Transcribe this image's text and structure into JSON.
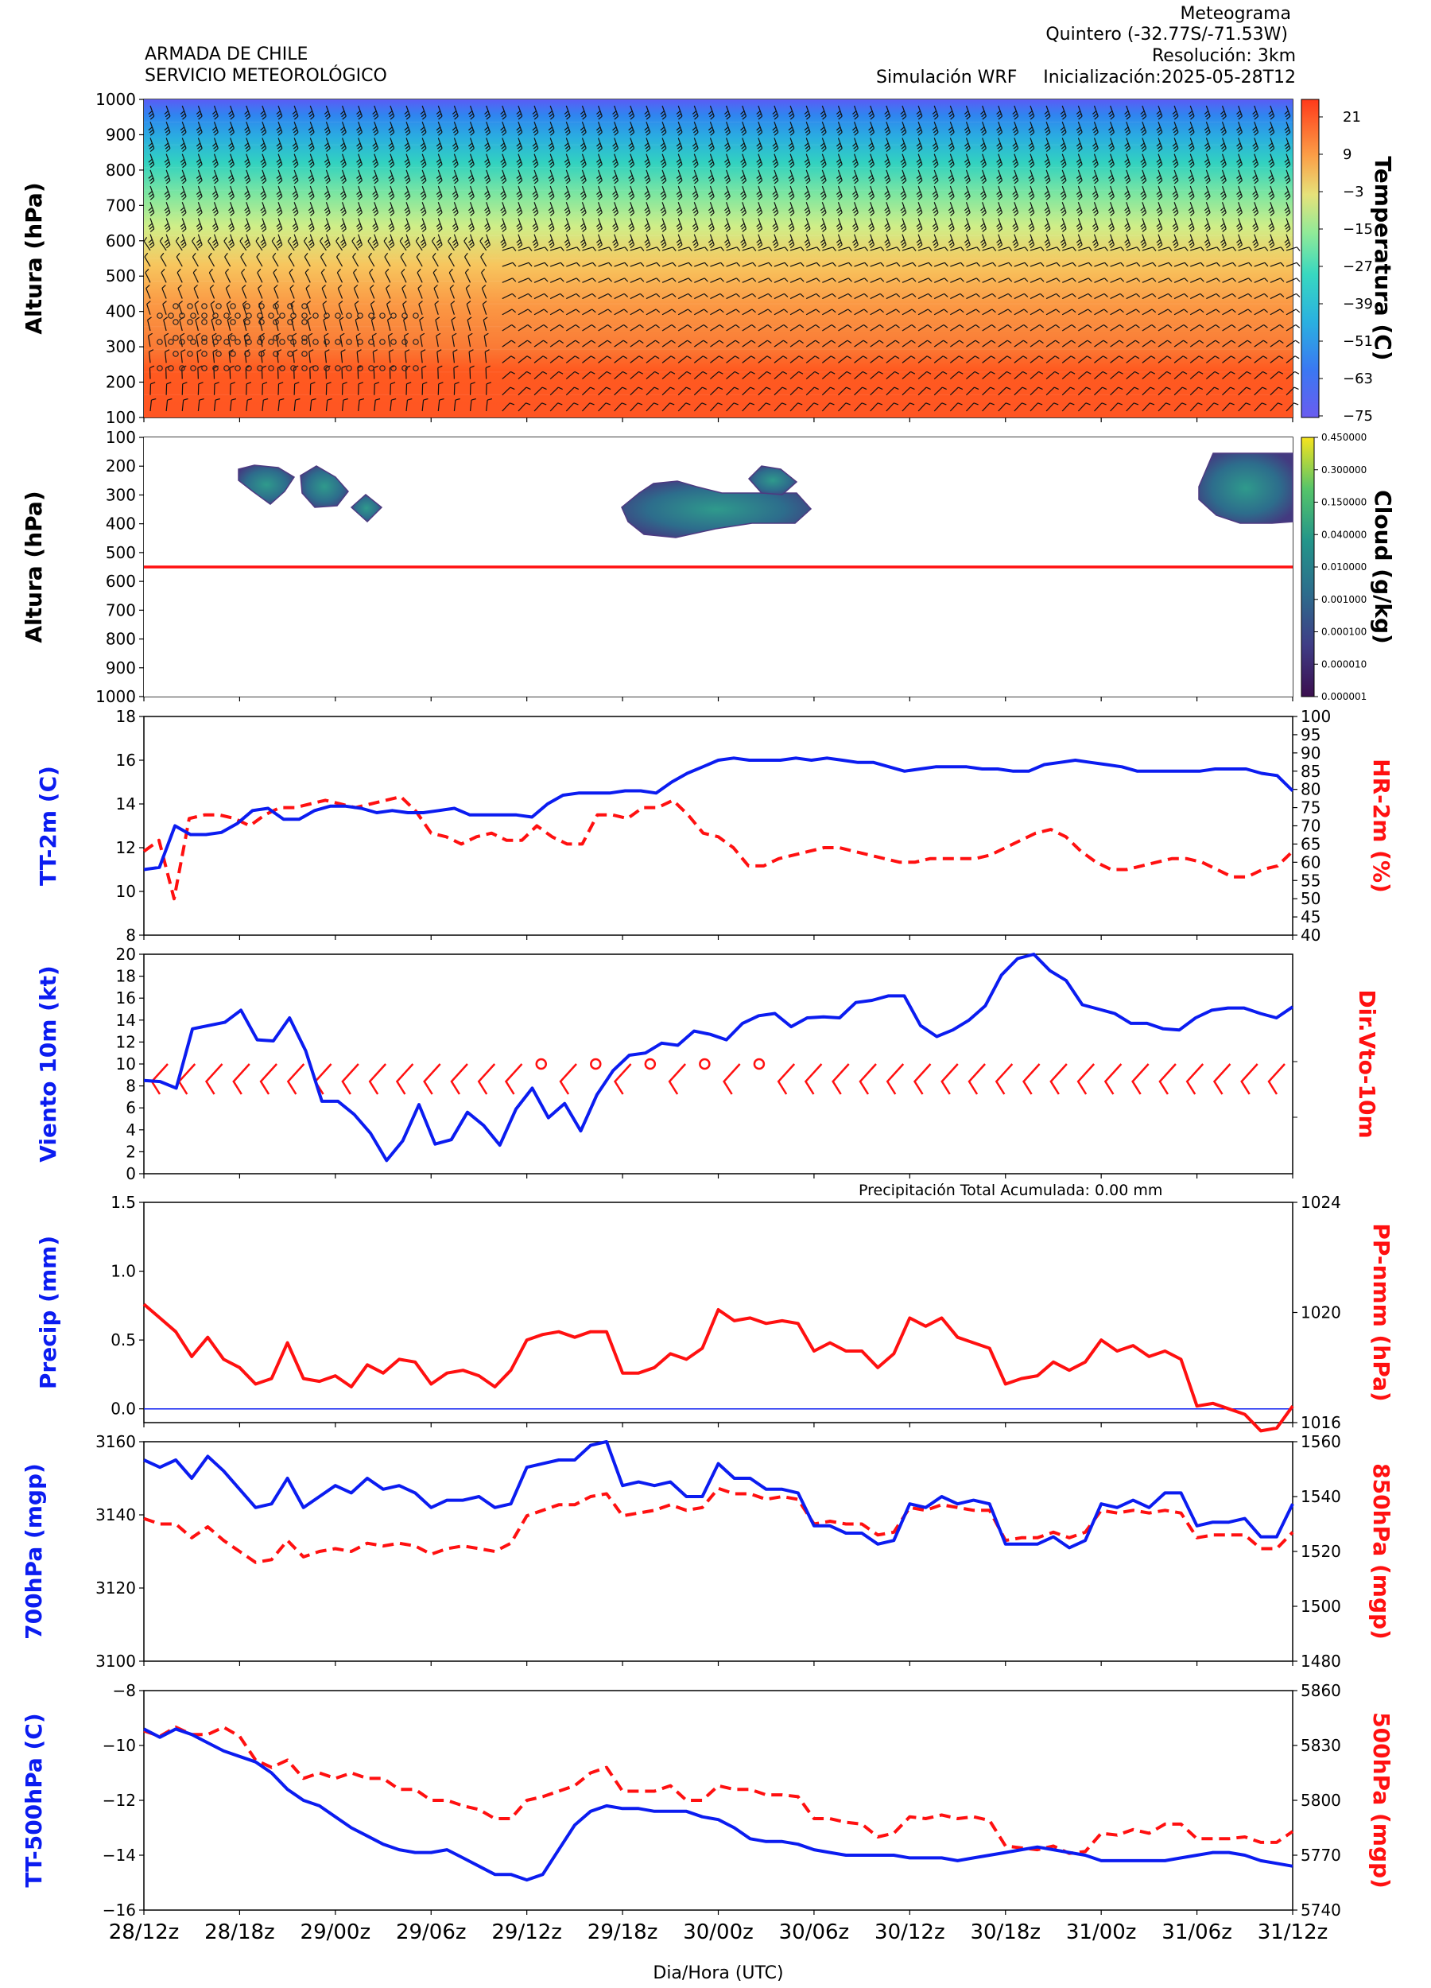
{
  "header": {
    "org_line1": "ARMADA DE CHILE",
    "org_line2": "SERVICIO METEOROLÓGICO",
    "product": "Meteograma",
    "location": "Quintero  (-32.77S/-71.53W)",
    "resolution": "Resolución: 3km",
    "simulation": "Simulación WRF",
    "init": "Inicialización:2025-05-28T12"
  },
  "xaxis": {
    "label": "Dia/Hora (UTC)",
    "ticks": [
      "28/12z",
      "28/18z",
      "29/00z",
      "29/06z",
      "29/12z",
      "29/18z",
      "30/00z",
      "30/06z",
      "30/12z",
      "30/18z",
      "31/00z",
      "31/06z",
      "31/12z"
    ]
  },
  "colors": {
    "blue": "#0b1cf0",
    "red": "#ff1010",
    "hot": "#ff4b1f",
    "cold": "#6a5cf0"
  },
  "chart_data": [
    {
      "type": "heatmap",
      "ylabel": "Altura (hPa)",
      "colorbar_label": "Temperatura (C)",
      "yticks": [
        "100",
        "200",
        "300",
        "400",
        "500",
        "600",
        "700",
        "800",
        "900",
        "1000"
      ],
      "colorbar_ticks": [
        "21",
        "9",
        "−3",
        "−15",
        "−27",
        "−39",
        "−51",
        "−63",
        "−75"
      ],
      "wind_barbs": true,
      "cloud_symbols": true
    },
    {
      "type": "heatmap",
      "ylabel": "Altura (hPa)",
      "colorbar_label": "Cloud (g/kg)",
      "yticks": [
        "100",
        "200",
        "300",
        "400",
        "500",
        "600",
        "700",
        "800",
        "900",
        "1000"
      ],
      "colorbar_ticks": [
        "0.450000",
        "0.300000",
        "0.150000",
        "0.040000",
        "0.010000",
        "0.001000",
        "0.000100",
        "0.000010",
        "0.000001"
      ],
      "freezing_level_hpa": 550
    },
    {
      "type": "line",
      "ylabel": "TT-2m (C)",
      "ylabel_right": "HR-2m (%)",
      "yticks": [
        "8",
        "10",
        "12",
        "14",
        "16",
        "18"
      ],
      "yticks_right": [
        "40",
        "45",
        "50",
        "55",
        "60",
        "65",
        "70",
        "75",
        "80",
        "85",
        "90",
        "95",
        "100"
      ],
      "ylim": [
        8,
        18
      ],
      "ylim_right": [
        40,
        100
      ],
      "series": [
        {
          "values": [
            11.0,
            11.1,
            13.0,
            12.6,
            12.6,
            12.7,
            13.1,
            13.7,
            13.8,
            13.3,
            13.3,
            13.7,
            13.9,
            13.9,
            13.8,
            13.6,
            13.7,
            13.6,
            13.6,
            13.7,
            13.8,
            13.5,
            13.5,
            13.5,
            13.5,
            13.4,
            14.0,
            14.4,
            14.5,
            14.5,
            14.5,
            14.6,
            14.6,
            14.5,
            15.0,
            15.4,
            15.7,
            16.0,
            16.1,
            16.0,
            16.0,
            16.0,
            16.1,
            16.0,
            16.1,
            16.0,
            15.9,
            15.9,
            15.7,
            15.5,
            15.6,
            15.7,
            15.7,
            15.7,
            15.6,
            15.6,
            15.5,
            15.5,
            15.8,
            15.9,
            16.0,
            15.9,
            15.8,
            15.7,
            15.5,
            15.5,
            15.5,
            15.5,
            15.5,
            15.6,
            15.6,
            15.6,
            15.4,
            15.3,
            14.6
          ]
        },
        {
          "values": [
            63,
            66,
            50,
            72,
            73,
            73,
            72,
            70,
            73,
            75,
            75,
            76,
            77,
            76,
            75,
            76,
            77,
            78,
            74,
            68,
            67,
            65,
            67,
            68,
            66,
            66,
            70,
            67,
            65,
            65,
            73,
            73,
            72,
            75,
            75,
            77,
            73,
            68,
            67,
            64,
            59,
            59,
            61,
            62,
            63,
            64,
            64,
            63,
            62,
            61,
            60,
            60,
            61,
            61,
            61,
            61,
            62,
            64,
            66,
            68,
            69,
            67,
            63,
            60,
            58,
            58,
            59,
            60,
            61,
            61,
            60,
            58,
            56,
            56,
            58,
            59,
            63
          ]
        }
      ]
    },
    {
      "type": "line",
      "ylabel": "Viento 10m (kt)",
      "ylabel_right": "Dir.Vto-10m",
      "yticks": [
        "0",
        "2",
        "4",
        "6",
        "8",
        "10",
        "12",
        "14",
        "16",
        "18",
        "20"
      ],
      "ylim": [
        0,
        20
      ],
      "series": [
        {
          "values": [
            8.5,
            8.4,
            7.8,
            13.2,
            13.5,
            13.8,
            14.9,
            12.2,
            12.1,
            14.2,
            11.2,
            6.6,
            6.6,
            5.4,
            3.7,
            1.2,
            3.0,
            6.3,
            2.7,
            3.1,
            5.6,
            4.4,
            2.6,
            5.9,
            7.8,
            5.1,
            6.4,
            3.9,
            7.2,
            9.4,
            10.8,
            11.0,
            11.9,
            11.7,
            13.0,
            12.7,
            12.2,
            13.7,
            14.4,
            14.6,
            13.4,
            14.2,
            14.3,
            14.2,
            15.6,
            15.8,
            16.2,
            16.2,
            13.5,
            12.5,
            13.1,
            14.0,
            15.3,
            18.1,
            19.6,
            20.0,
            18.5,
            17.6,
            15.4,
            15.0,
            14.6,
            13.7,
            13.7,
            13.2,
            13.1,
            14.2,
            14.9,
            15.1,
            15.1,
            14.6,
            14.2,
            15.2
          ]
        }
      ],
      "wind_barbs": true,
      "calm_circles": true
    },
    {
      "type": "line",
      "title": "Precipitación Total Acumulada: 0.00 mm",
      "ylabel": "Precip (mm)",
      "ylabel_right": "PP-nmm (hPa)",
      "yticks": [
        "0.0",
        "0.5",
        "1.0",
        "1.5"
      ],
      "yticks_right": [
        "1016",
        "1020",
        "1024"
      ],
      "ylim": [
        -0.1,
        1.5
      ],
      "ylim_right": [
        1016,
        1024
      ],
      "series": [
        {
          "values": [
            0.0,
            0.0,
            0.0,
            0.0,
            0.0,
            0.0,
            0.0,
            0.0,
            0.0,
            0.0,
            0.0,
            0.0,
            0.0,
            0.0,
            0.0,
            0.0,
            0.0,
            0.0,
            0.0,
            0.0,
            0.0,
            0.0,
            0.0,
            0.0,
            0.0,
            0.0,
            0.0,
            0.0,
            0.0,
            0.0,
            0.0,
            0.0,
            0.0,
            0.0,
            0.0,
            0.0,
            0.0,
            0.0,
            0.0,
            0.0,
            0.0,
            0.0,
            0.0,
            0.0,
            0.0,
            0.0,
            0.0,
            0.0,
            0.0,
            0.0,
            0.0,
            0.0,
            0.0,
            0.0,
            0.0,
            0.0,
            0.0,
            0.0,
            0.0,
            0.0,
            0.0,
            0.0,
            0.0,
            0.0,
            0.0,
            0.0,
            0.0,
            0.0,
            0.0,
            0.0,
            0.0,
            0.0,
            0.0
          ]
        },
        {
          "values": [
            1020.3,
            1019.8,
            1019.3,
            1018.4,
            1019.1,
            1018.3,
            1018.0,
            1017.4,
            1017.6,
            1018.9,
            1017.6,
            1017.5,
            1017.7,
            1017.3,
            1018.1,
            1017.8,
            1018.3,
            1018.2,
            1017.4,
            1017.8,
            1017.9,
            1017.7,
            1017.3,
            1017.9,
            1019.0,
            1019.2,
            1019.3,
            1019.1,
            1019.3,
            1019.3,
            1017.8,
            1017.8,
            1018.0,
            1018.5,
            1018.3,
            1018.7,
            1020.1,
            1019.7,
            1019.8,
            1019.6,
            1019.7,
            1019.6,
            1018.6,
            1018.9,
            1018.6,
            1018.6,
            1018.0,
            1018.5,
            1019.8,
            1019.5,
            1019.8,
            1019.1,
            1018.9,
            1018.7,
            1017.4,
            1017.6,
            1017.7,
            1018.2,
            1017.9,
            1018.2,
            1019.0,
            1018.6,
            1018.8,
            1018.4,
            1018.6,
            1018.3,
            1016.6,
            1016.7,
            1016.5,
            1016.3,
            1015.7,
            1015.8,
            1016.6
          ]
        }
      ]
    },
    {
      "type": "line",
      "ylabel": "700hPa (mgp)",
      "ylabel_right": "850hPa (mgp)",
      "yticks": [
        "3100",
        "3120",
        "3140",
        "3160"
      ],
      "yticks_right": [
        "1480",
        "1500",
        "1520",
        "1540",
        "1560"
      ],
      "ylim": [
        3100,
        3160
      ],
      "ylim_right": [
        1480,
        1560
      ],
      "series": [
        {
          "values": [
            3155,
            3153,
            3155,
            3150,
            3156,
            3152,
            3147,
            3142,
            3143,
            3150,
            3142,
            3145,
            3148,
            3146,
            3150,
            3147,
            3148,
            3146,
            3142,
            3144,
            3144,
            3145,
            3142,
            3143,
            3153,
            3154,
            3155,
            3155,
            3159,
            3160,
            3148,
            3149,
            3148,
            3149,
            3145,
            3145,
            3154,
            3150,
            3150,
            3147,
            3147,
            3146,
            3137,
            3137,
            3135,
            3135,
            3132,
            3133,
            3143,
            3142,
            3145,
            3143,
            3144,
            3143,
            3132,
            3132,
            3132,
            3134,
            3131,
            3133,
            3143,
            3142,
            3144,
            3142,
            3146,
            3146,
            3137,
            3138,
            3138,
            3139,
            3134,
            3134,
            3143
          ]
        },
        {
          "values": [
            1532,
            1530,
            1530,
            1525,
            1529,
            1524,
            1520,
            1516,
            1517,
            1524,
            1518,
            1520,
            1521,
            1520,
            1523,
            1522,
            1523,
            1522,
            1519,
            1521,
            1522,
            1521,
            1520,
            1523,
            1533,
            1535,
            1537,
            1537,
            1540,
            1541,
            1533,
            1534,
            1535,
            1537,
            1535,
            1536,
            1543,
            1541,
            1541,
            1539,
            1540,
            1539,
            1530,
            1531,
            1530,
            1530,
            1526,
            1527,
            1536,
            1535,
            1537,
            1536,
            1535,
            1535,
            1524,
            1525,
            1525,
            1527,
            1525,
            1527,
            1535,
            1534,
            1535,
            1534,
            1535,
            1534,
            1525,
            1526,
            1526,
            1526,
            1521,
            1521,
            1527
          ]
        }
      ]
    },
    {
      "type": "line",
      "ylabel": "TT-500hPa (C)",
      "ylabel_right": "500hPa (mgp)",
      "yticks": [
        "−16",
        "−14",
        "−12",
        "−10",
        "−8"
      ],
      "yticks_right": [
        "5740",
        "5770",
        "5800",
        "5830",
        "5860"
      ],
      "ylim": [
        -16,
        -8
      ],
      "ylim_right": [
        5740,
        5860
      ],
      "series": [
        {
          "values": [
            -9.4,
            -9.7,
            -9.4,
            -9.6,
            -9.9,
            -10.2,
            -10.4,
            -10.6,
            -11.0,
            -11.6,
            -12.0,
            -12.2,
            -12.6,
            -13.0,
            -13.3,
            -13.6,
            -13.8,
            -13.9,
            -13.9,
            -13.8,
            -14.1,
            -14.4,
            -14.7,
            -14.7,
            -14.9,
            -14.7,
            -13.8,
            -12.9,
            -12.4,
            -12.2,
            -12.3,
            -12.3,
            -12.4,
            -12.4,
            -12.4,
            -12.6,
            -12.7,
            -13.0,
            -13.4,
            -13.5,
            -13.5,
            -13.6,
            -13.8,
            -13.9,
            -14.0,
            -14.0,
            -14.0,
            -14.0,
            -14.1,
            -14.1,
            -14.1,
            -14.2,
            -14.1,
            -14.0,
            -13.9,
            -13.8,
            -13.7,
            -13.8,
            -13.9,
            -14.0,
            -14.2,
            -14.2,
            -14.2,
            -14.2,
            -14.2,
            -14.1,
            -14.0,
            -13.9,
            -13.9,
            -14.0,
            -14.2,
            -14.3,
            -14.4
          ]
        },
        {
          "values": [
            5838,
            5835,
            5840,
            5836,
            5836,
            5840,
            5835,
            5822,
            5818,
            5822,
            5812,
            5815,
            5812,
            5815,
            5812,
            5812,
            5806,
            5806,
            5800,
            5800,
            5797,
            5795,
            5790,
            5790,
            5800,
            5802,
            5805,
            5808,
            5815,
            5818,
            5805,
            5805,
            5805,
            5808,
            5800,
            5800,
            5808,
            5806,
            5806,
            5803,
            5803,
            5802,
            5790,
            5790,
            5788,
            5787,
            5780,
            5782,
            5791,
            5790,
            5792,
            5790,
            5791,
            5789,
            5775,
            5774,
            5773,
            5775,
            5771,
            5772,
            5782,
            5781,
            5784,
            5782,
            5787,
            5787,
            5779,
            5779,
            5779,
            5780,
            5777,
            5777,
            5783
          ]
        }
      ]
    }
  ]
}
